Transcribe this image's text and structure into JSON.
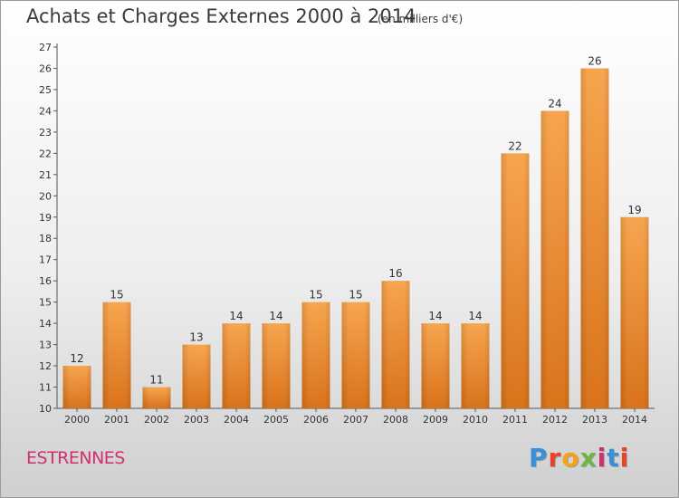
{
  "header": {
    "title": "Achats et Charges Externes 2000 à 2014",
    "unit": "(en milliers d'€)"
  },
  "footer": {
    "commune": "ESTRENNES",
    "brand": "Proxiti",
    "brand_colors": [
      "#3b8fd6",
      "#e8412c",
      "#f3a21b",
      "#6cb843",
      "#d1306e",
      "#3b8fd6",
      "#e8412c"
    ]
  },
  "colors": {
    "bar_light": "#f7a54f",
    "bar_dark": "#d9731c",
    "title_text": "#3a3a3a",
    "commune_text": "#d1306e"
  },
  "chart_data": {
    "type": "bar",
    "categories": [
      "2000",
      "2001",
      "2002",
      "2003",
      "2004",
      "2005",
      "2006",
      "2007",
      "2008",
      "2009",
      "2010",
      "2011",
      "2012",
      "2013",
      "2014"
    ],
    "values": [
      12,
      15,
      11,
      13,
      14,
      14,
      15,
      15,
      16,
      14,
      14,
      22,
      24,
      26,
      19
    ],
    "ylim": [
      10,
      27
    ],
    "yticks": [
      10,
      11,
      12,
      13,
      14,
      15,
      16,
      17,
      18,
      19,
      20,
      21,
      22,
      23,
      24,
      25,
      26,
      27
    ],
    "grid": false,
    "data_labels": true
  }
}
